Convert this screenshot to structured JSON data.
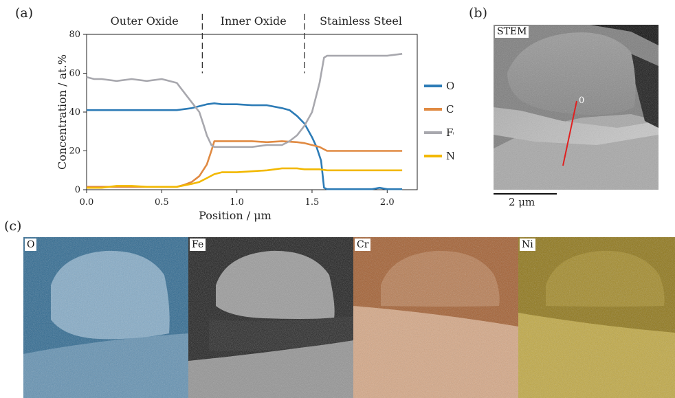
{
  "panels": {
    "a": "(a)",
    "b": "(b)",
    "c": "(c)"
  },
  "regions": [
    "Outer Oxide",
    "Inner Oxide",
    "Stainless Steel"
  ],
  "stem": {
    "tag": "STEM",
    "line_label": "0",
    "scale_label": "2 μm"
  },
  "maps": [
    {
      "tag": "O",
      "color": "#2a6790",
      "color_light": "#8db3ce"
    },
    {
      "tag": "Fe",
      "color": "#1a1a1a",
      "color_light": "#a9a9a9"
    },
    {
      "tag": "Cr",
      "color": "#a35c2c",
      "color_light": "#e0b494"
    },
    {
      "tag": "Ni",
      "color": "#8e7412",
      "color_light": "#cab248"
    }
  ],
  "chart_data": {
    "type": "line",
    "xlabel": "Position / μm",
    "ylabel": "Concentration / at.%",
    "xlim": [
      0,
      2.2
    ],
    "ylim": [
      0,
      80
    ],
    "xticks": [
      "0.0",
      "0.5",
      "1.0",
      "1.5",
      "2.0"
    ],
    "yticks": [
      "0",
      "20",
      "40",
      "60",
      "80"
    ],
    "boundaries": [
      0.77,
      1.45
    ],
    "legend_position": "right",
    "series": [
      {
        "name": "O",
        "color": "#2c7bb6",
        "x": [
          0.0,
          0.1,
          0.2,
          0.3,
          0.4,
          0.5,
          0.6,
          0.7,
          0.75,
          0.8,
          0.85,
          0.9,
          1.0,
          1.1,
          1.2,
          1.3,
          1.35,
          1.4,
          1.45,
          1.5,
          1.53,
          1.56,
          1.58,
          1.6,
          1.7,
          1.8,
          1.9,
          1.95,
          2.0,
          2.02,
          2.1
        ],
        "y": [
          41,
          41,
          41,
          41,
          41,
          41,
          41,
          42,
          43,
          44,
          44.5,
          44,
          44,
          43.5,
          43.5,
          42,
          41,
          38,
          34,
          27,
          22,
          15,
          1,
          0.3,
          0.3,
          0.3,
          0.3,
          1,
          0.3,
          0.3,
          0.3
        ]
      },
      {
        "name": "Cr",
        "color": "#e08a42",
        "x": [
          0.0,
          0.1,
          0.2,
          0.3,
          0.4,
          0.5,
          0.6,
          0.65,
          0.7,
          0.75,
          0.8,
          0.83,
          0.85,
          0.9,
          1.0,
          1.1,
          1.2,
          1.3,
          1.4,
          1.45,
          1.5,
          1.55,
          1.6,
          1.7,
          1.8,
          1.9,
          2.0,
          2.1
        ],
        "y": [
          1.5,
          1.5,
          1.5,
          1.5,
          1.5,
          1.5,
          1.5,
          2.5,
          4,
          7,
          13,
          20,
          25,
          25,
          25,
          25,
          24.5,
          25,
          24.5,
          24,
          23,
          22,
          20,
          20,
          20,
          20,
          20,
          20
        ]
      },
      {
        "name": "Fe",
        "color": "#a8a8ae",
        "x": [
          0.0,
          0.05,
          0.1,
          0.2,
          0.3,
          0.4,
          0.5,
          0.55,
          0.6,
          0.65,
          0.7,
          0.75,
          0.78,
          0.8,
          0.83,
          0.85,
          0.9,
          1.0,
          1.1,
          1.2,
          1.3,
          1.35,
          1.4,
          1.45,
          1.5,
          1.55,
          1.58,
          1.6,
          1.7,
          1.8,
          1.9,
          2.0,
          2.1
        ],
        "y": [
          58,
          57,
          57,
          56,
          57,
          56,
          57,
          56,
          55,
          50,
          45,
          40,
          33,
          28,
          23,
          22,
          22,
          22,
          22,
          23,
          23,
          25,
          28,
          33,
          40,
          55,
          68,
          69,
          69,
          69,
          69,
          69,
          70
        ]
      },
      {
        "name": "Ni",
        "color": "#f2b800",
        "x": [
          0.0,
          0.1,
          0.2,
          0.3,
          0.4,
          0.5,
          0.6,
          0.7,
          0.75,
          0.8,
          0.85,
          0.9,
          1.0,
          1.1,
          1.2,
          1.3,
          1.4,
          1.45,
          1.5,
          1.55,
          1.6,
          1.7,
          1.8,
          1.9,
          2.0,
          2.1
        ],
        "y": [
          1,
          1,
          2,
          2,
          1.5,
          1.5,
          1.5,
          3,
          4,
          6,
          8,
          9,
          9,
          9.5,
          10,
          11,
          11,
          10.5,
          10.5,
          10.5,
          10,
          10,
          10,
          10,
          10,
          10
        ]
      }
    ]
  }
}
